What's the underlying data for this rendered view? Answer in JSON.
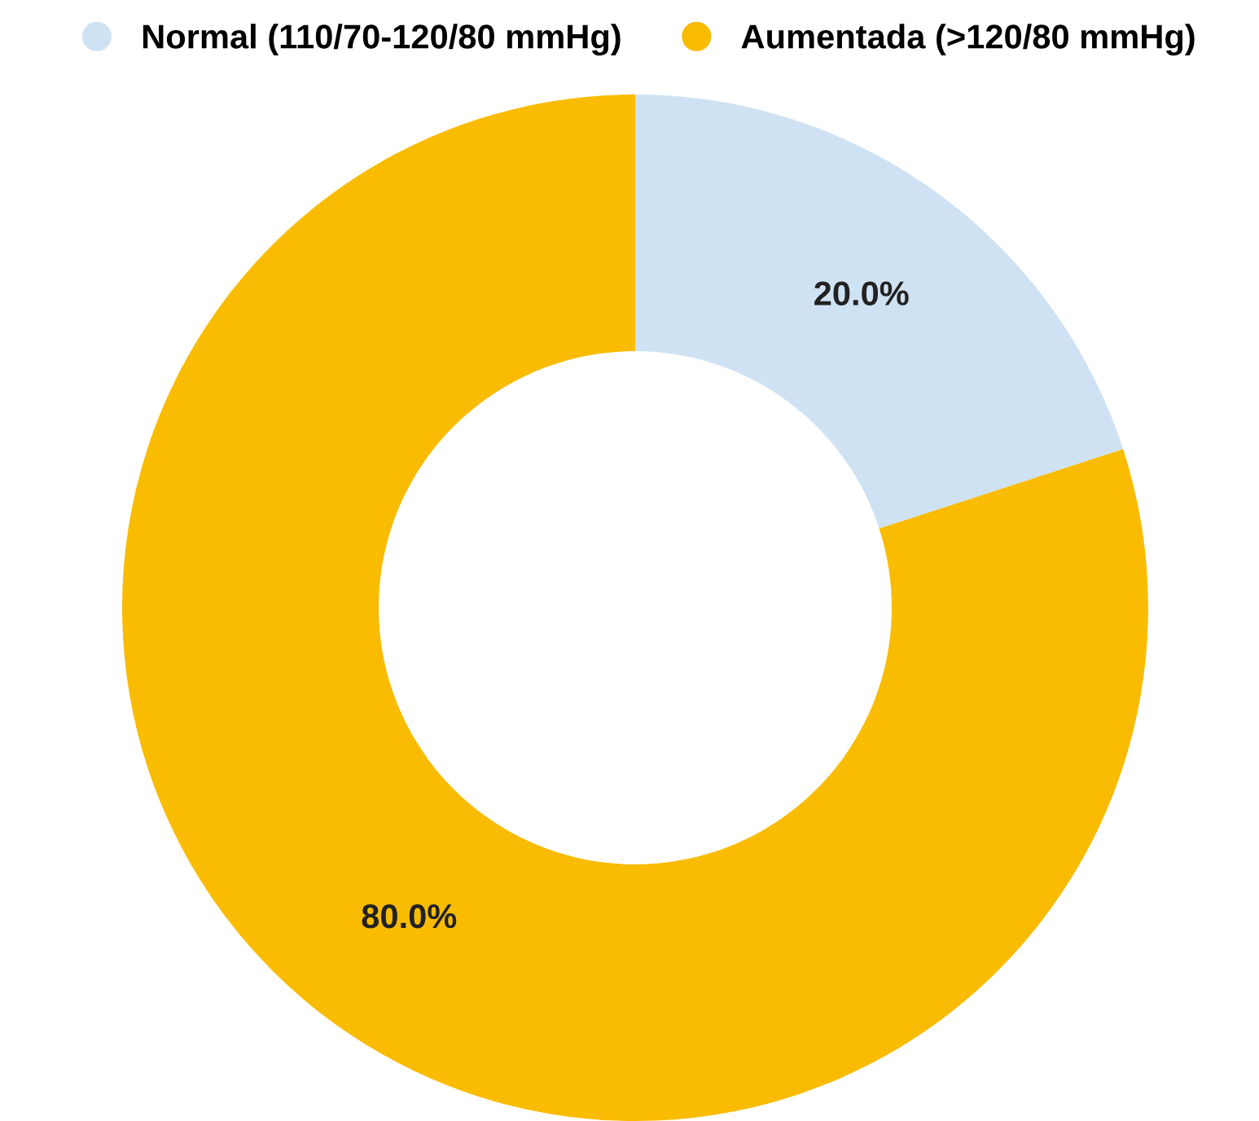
{
  "chart_data": {
    "type": "donut",
    "categories": [
      "Normal (110/70-120/80 mmHg)",
      "Aumentada (>120/80 mmHg)"
    ],
    "values": [
      20.0,
      80.0
    ],
    "colors": [
      "#cfe2f3",
      "#f9bc02"
    ],
    "value_labels": [
      "20.0%",
      "80.0%"
    ],
    "legend": "top"
  }
}
